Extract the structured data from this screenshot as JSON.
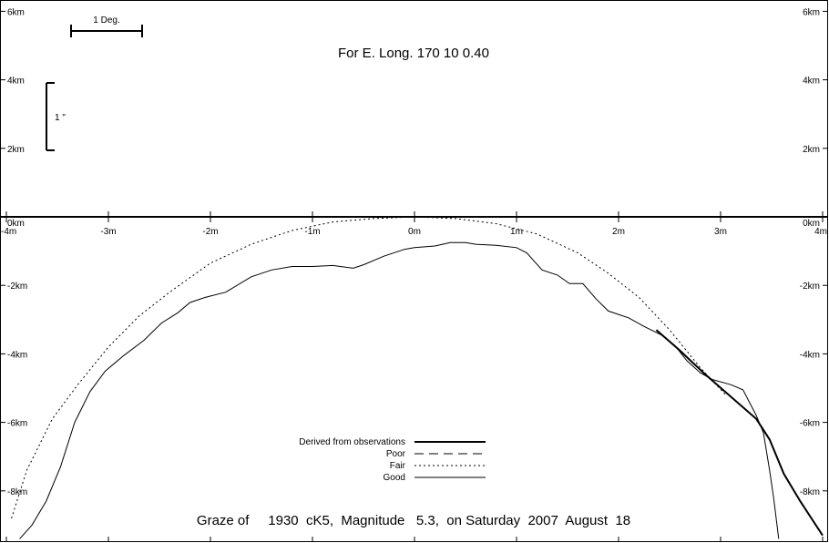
{
  "chart_data": {
    "type": "line",
    "title": "For E. Long.  170 10  0.40",
    "footer": "Graze of     1930  cK5,  Magnitude   5.3,  on Saturday  2007  August  18",
    "scale_bar_label": "1 Deg.",
    "vertical_bar_label": "1 \"",
    "x_ticks": [
      {
        "value": -4,
        "label": "-4m"
      },
      {
        "value": -3,
        "label": "-3m"
      },
      {
        "value": -2,
        "label": "-2m"
      },
      {
        "value": -1,
        "label": "-1m"
      },
      {
        "value": 0,
        "label": "0m"
      },
      {
        "value": 1,
        "label": "1m"
      },
      {
        "value": 2,
        "label": "2m"
      },
      {
        "value": 3,
        "label": "3m"
      },
      {
        "value": 4,
        "label": "4m"
      }
    ],
    "y_ticks_left": [
      {
        "value": 6,
        "label": "6km"
      },
      {
        "value": 4,
        "label": "4km"
      },
      {
        "value": 2,
        "label": "2km"
      },
      {
        "value": 0,
        "label": "0km"
      },
      {
        "value": -2,
        "label": "-2km"
      },
      {
        "value": -4,
        "label": "-4km"
      },
      {
        "value": -6,
        "label": "-6km"
      },
      {
        "value": -8,
        "label": "-8km"
      }
    ],
    "y_ticks_right": [
      {
        "value": 6,
        "label": "6km"
      },
      {
        "value": 4,
        "label": "4km"
      },
      {
        "value": 2,
        "label": "2km"
      },
      {
        "value": 0,
        "label": "0km"
      },
      {
        "value": -2,
        "label": "-2km"
      },
      {
        "value": -4,
        "label": "-4km"
      },
      {
        "value": -6,
        "label": "-6km"
      },
      {
        "value": -8,
        "label": "-8km"
      }
    ],
    "xlim": [
      -4,
      4
    ],
    "ylim": [
      -9.4,
      6.4
    ],
    "legend": {
      "placement": "bottom-center",
      "entries": [
        {
          "label": "Derived from observations",
          "style": "thick"
        },
        {
          "label": "Poor",
          "style": "dashed"
        },
        {
          "label": "Fair",
          "style": "dotted"
        },
        {
          "label": "Good",
          "style": "solid"
        }
      ]
    },
    "series": [
      {
        "label_ref": "Good",
        "style": "solid",
        "points": [
          [
            -3.87,
            -9.4
          ],
          [
            -3.75,
            -9.0
          ],
          [
            -3.61,
            -8.3
          ],
          [
            -3.47,
            -7.3
          ],
          [
            -3.33,
            -6.0
          ],
          [
            -3.18,
            -5.1
          ],
          [
            -3.03,
            -4.5
          ],
          [
            -2.85,
            -4.05
          ],
          [
            -2.65,
            -3.6
          ],
          [
            -2.48,
            -3.1
          ],
          [
            -2.32,
            -2.8
          ],
          [
            -2.2,
            -2.5
          ],
          [
            -2.05,
            -2.35
          ],
          [
            -1.85,
            -2.2
          ],
          [
            -1.6,
            -1.75
          ],
          [
            -1.4,
            -1.55
          ],
          [
            -1.2,
            -1.45
          ],
          [
            -1.0,
            -1.45
          ],
          [
            -0.8,
            -1.42
          ],
          [
            -0.6,
            -1.5
          ],
          [
            -0.5,
            -1.4
          ],
          [
            -0.3,
            -1.15
          ],
          [
            -0.1,
            -0.95
          ],
          [
            0.0,
            -0.9
          ],
          [
            0.2,
            -0.85
          ],
          [
            0.35,
            -0.75
          ],
          [
            0.5,
            -0.75
          ],
          [
            0.6,
            -0.8
          ],
          [
            0.8,
            -0.83
          ],
          [
            1.0,
            -0.9
          ],
          [
            1.1,
            -1.05
          ],
          [
            1.25,
            -1.55
          ],
          [
            1.4,
            -1.7
          ],
          [
            1.52,
            -1.95
          ],
          [
            1.65,
            -1.95
          ],
          [
            1.78,
            -2.4
          ],
          [
            1.9,
            -2.75
          ],
          [
            2.1,
            -2.95
          ],
          [
            2.25,
            -3.2
          ],
          [
            2.42,
            -3.45
          ],
          [
            2.55,
            -3.75
          ],
          [
            2.67,
            -4.2
          ],
          [
            2.8,
            -4.55
          ],
          [
            2.92,
            -4.75
          ],
          [
            3.1,
            -4.9
          ],
          [
            3.22,
            -5.05
          ],
          [
            3.35,
            -5.8
          ],
          [
            3.42,
            -6.3
          ],
          [
            3.48,
            -7.4
          ],
          [
            3.52,
            -8.2
          ],
          [
            3.57,
            -9.4
          ]
        ]
      },
      {
        "label_ref": "Fair",
        "style": "dotted",
        "points": [
          [
            -3.95,
            -8.8
          ],
          [
            -3.8,
            -7.4
          ],
          [
            -3.55,
            -5.9
          ],
          [
            -3.3,
            -4.9
          ],
          [
            -3.0,
            -3.8
          ],
          [
            -2.7,
            -2.9
          ],
          [
            -2.4,
            -2.2
          ],
          [
            -2.0,
            -1.35
          ],
          [
            -1.6,
            -0.8
          ],
          [
            -1.2,
            -0.4
          ],
          [
            -0.8,
            -0.15
          ],
          [
            -0.4,
            -0.05
          ],
          [
            0.0,
            0.0
          ],
          [
            0.4,
            -0.05
          ],
          [
            0.8,
            -0.2
          ],
          [
            1.2,
            -0.5
          ],
          [
            1.6,
            -1.05
          ],
          [
            1.9,
            -1.65
          ],
          [
            2.2,
            -2.35
          ],
          [
            2.5,
            -3.3
          ],
          [
            2.8,
            -4.4
          ],
          [
            3.05,
            -5.2
          ]
        ]
      },
      {
        "label_ref": "Derived from observations",
        "style": "thick",
        "points": [
          [
            2.37,
            -3.3
          ],
          [
            2.6,
            -3.9
          ],
          [
            2.85,
            -4.6
          ],
          [
            3.1,
            -5.25
          ],
          [
            3.35,
            -5.9
          ],
          [
            3.48,
            -6.5
          ],
          [
            3.62,
            -7.5
          ],
          [
            3.78,
            -8.3
          ],
          [
            4.0,
            -9.3
          ]
        ]
      }
    ]
  }
}
